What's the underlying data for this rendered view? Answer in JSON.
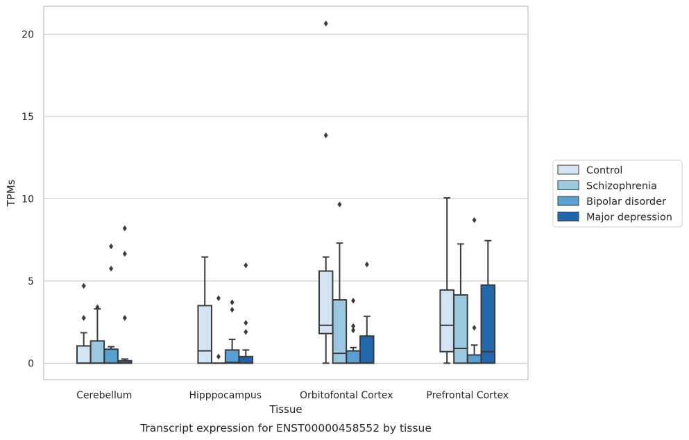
{
  "chart_data": {
    "type": "box",
    "xlabel": "Tissue",
    "ylabel": "TPMs",
    "caption": "Transcript expression for ENST00000458552 by tissue",
    "ylim": [
      -1,
      21.7
    ],
    "yticks": [
      0,
      5,
      10,
      15,
      20
    ],
    "grid": "horizontal",
    "legend_position": "right",
    "categories": [
      "Cerebellum",
      "Hipppocampus",
      "Orbitofontal Cortex",
      "Prefrontal Cortex"
    ],
    "series": [
      {
        "name": "Control",
        "color": "#d2e3f3",
        "boxes": [
          {
            "whislo": 0,
            "q1": 0,
            "med": 0,
            "q3": 1.05,
            "whishi": 1.85,
            "fliers": [
              2.75,
              4.7
            ]
          },
          {
            "whislo": 0,
            "q1": 0,
            "med": 0.75,
            "q3": 3.5,
            "whishi": 6.45,
            "fliers": []
          },
          {
            "whislo": 0,
            "q1": 1.8,
            "med": 2.3,
            "q3": 5.6,
            "whishi": 6.45,
            "fliers": [
              13.85,
              20.65
            ]
          },
          {
            "whislo": 0,
            "q1": 0.7,
            "med": 2.3,
            "q3": 4.45,
            "whishi": 10.05,
            "fliers": []
          }
        ]
      },
      {
        "name": "Schizophrenia",
        "color": "#9ac8e0",
        "boxes": [
          {
            "whislo": 0,
            "q1": 0,
            "med": 0,
            "q3": 1.35,
            "whishi": 3.3,
            "fliers": [
              3.4
            ]
          },
          {
            "whislo": 0,
            "q1": 0,
            "med": 0,
            "q3": 0,
            "whishi": 0,
            "fliers": [
              0.4,
              3.95
            ]
          },
          {
            "whislo": 0,
            "q1": 0,
            "med": 0.6,
            "q3": 3.85,
            "whishi": 7.3,
            "fliers": [
              9.65
            ]
          },
          {
            "whislo": 0,
            "q1": 0,
            "med": 0.9,
            "q3": 4.15,
            "whishi": 7.25,
            "fliers": []
          }
        ]
      },
      {
        "name": "Bipolar disorder",
        "color": "#5a9fcf",
        "boxes": [
          {
            "whislo": 0,
            "q1": 0,
            "med": 0,
            "q3": 0.85,
            "whishi": 1.0,
            "fliers": [
              5.75,
              7.1
            ]
          },
          {
            "whislo": 0,
            "q1": 0,
            "med": 0.05,
            "q3": 0.8,
            "whishi": 1.45,
            "fliers": [
              3.25,
              3.7
            ]
          },
          {
            "whislo": 0,
            "q1": 0,
            "med": 0,
            "q3": 0.75,
            "whishi": 0.95,
            "fliers": [
              2.0,
              2.25,
              3.8
            ]
          },
          {
            "whislo": 0,
            "q1": 0,
            "med": 0,
            "q3": 0.5,
            "whishi": 1.1,
            "fliers": [
              2.15,
              8.7
            ]
          }
        ]
      },
      {
        "name": "Major depression",
        "color": "#2166ab",
        "boxes": [
          {
            "whislo": 0,
            "q1": 0,
            "med": 0,
            "q3": 0.15,
            "whishi": 0.25,
            "fliers": [
              2.75,
              6.65,
              8.2
            ]
          },
          {
            "whislo": 0,
            "q1": 0,
            "med": 0,
            "q3": 0.4,
            "whishi": 0.8,
            "fliers": [
              1.9,
              2.45,
              5.95
            ]
          },
          {
            "whislo": 0,
            "q1": 0,
            "med": 0,
            "q3": 1.65,
            "whishi": 2.85,
            "fliers": [
              6.0
            ]
          },
          {
            "whislo": 0,
            "q1": 0,
            "med": 0.7,
            "q3": 4.75,
            "whishi": 7.45,
            "fliers": []
          }
        ]
      }
    ]
  }
}
